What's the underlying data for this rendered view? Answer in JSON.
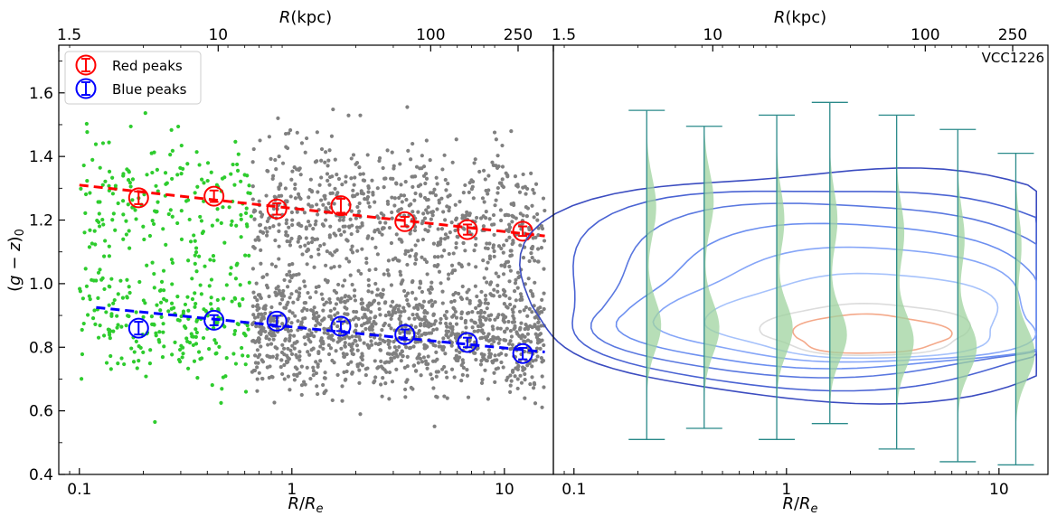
{
  "chart_data": [
    {
      "type": "scatter",
      "panel": "left",
      "xlabel": "R/R_e",
      "ylabel": "(g − z)_0",
      "top_xlabel": "R(kpc)",
      "xscale": "log",
      "xlim": [
        0.08,
        17.0
      ],
      "ylim": [
        0.4,
        1.75
      ],
      "top_ticks": [
        "1.5",
        "10",
        "100",
        "250"
      ],
      "top_ticks_re": [
        0.08,
        0.45,
        4.5,
        11.6
      ],
      "bottom_ticks": [
        "0.1",
        "1",
        "10"
      ],
      "bottom_ticks_re": [
        0.1,
        1,
        10
      ],
      "y_ticks": [
        "0.4",
        "0.6",
        "0.8",
        "1.0",
        "1.2",
        "1.4",
        "1.6"
      ],
      "y_ticks_values": [
        0.4,
        0.6,
        0.8,
        1.0,
        1.2,
        1.4,
        1.6
      ],
      "legend": {
        "position": "top-left",
        "entries": [
          {
            "label": "Red peaks",
            "color": "#ff0000"
          },
          {
            "label": "Blue peaks",
            "color": "#0000ff"
          }
        ]
      },
      "series": [
        {
          "name": "Red peaks",
          "color": "#ff0000",
          "x": [
            0.19,
            0.43,
            0.85,
            1.7,
            3.4,
            6.7,
            12.2
          ],
          "y": [
            1.27,
            1.275,
            1.235,
            1.245,
            1.195,
            1.17,
            1.165
          ],
          "yerr": [
            0.02,
            0.018,
            0.018,
            0.022,
            0.015,
            0.016,
            0.015
          ],
          "fit": {
            "x": [
              0.1,
              15.5
            ],
            "y": [
              1.31,
              1.15
            ]
          }
        },
        {
          "name": "Blue peaks",
          "color": "#0000ff",
          "x": [
            0.19,
            0.43,
            0.85,
            1.7,
            3.4,
            6.7,
            12.2
          ],
          "y": [
            0.86,
            0.885,
            0.882,
            0.866,
            0.84,
            0.815,
            0.78
          ],
          "yerr": [
            0.02,
            0.016,
            0.017,
            0.015,
            0.016,
            0.015,
            0.018
          ],
          "fit": {
            "x": [
              0.12,
              15.5
            ],
            "y": [
              0.925,
              0.785
            ]
          }
        }
      ],
      "scatter_groups": [
        {
          "color": "#2ecc2e",
          "x_range": [
            0.1,
            0.65
          ],
          "y_range": [
            0.5,
            1.55
          ]
        },
        {
          "color": "#808080",
          "x_range": [
            0.65,
            15.5
          ],
          "y_range": [
            0.43,
            1.57
          ]
        }
      ]
    },
    {
      "type": "contour",
      "panel": "right",
      "label": "VCC1226",
      "xlabel": "R/R_e",
      "top_xlabel": "R(kpc)",
      "xscale": "log",
      "xlim": [
        0.08,
        17.0
      ],
      "ylim": [
        0.4,
        1.75
      ],
      "top_ticks": [
        "1.5",
        "10",
        "100",
        "250"
      ],
      "top_ticks_re": [
        0.08,
        0.45,
        4.5,
        11.6
      ],
      "bottom_ticks": [
        "0.1",
        "1",
        "10"
      ],
      "bottom_ticks_re": [
        0.1,
        1,
        10
      ],
      "violins": [
        {
          "x": 0.22,
          "ymin": 0.51,
          "ymax": 1.545,
          "peaks": [
            {
              "y": 0.87,
              "w": 0.38
            },
            {
              "y": 1.24,
              "w": 0.25
            }
          ]
        },
        {
          "x": 0.41,
          "ymin": 0.545,
          "ymax": 1.495,
          "peaks": [
            {
              "y": 0.86,
              "w": 0.4
            },
            {
              "y": 1.26,
              "w": 0.25
            }
          ]
        },
        {
          "x": 0.9,
          "ymin": 0.51,
          "ymax": 1.53,
          "peaks": [
            {
              "y": 0.86,
              "w": 0.42
            },
            {
              "y": 1.2,
              "w": 0.2
            }
          ]
        },
        {
          "x": 1.6,
          "ymin": 0.56,
          "ymax": 1.57,
          "peaks": [
            {
              "y": 0.84,
              "w": 0.45
            },
            {
              "y": 1.2,
              "w": 0.2
            }
          ]
        },
        {
          "x": 3.3,
          "ymin": 0.48,
          "ymax": 1.53,
          "peaks": [
            {
              "y": 0.82,
              "w": 0.45
            },
            {
              "y": 1.16,
              "w": 0.2
            }
          ]
        },
        {
          "x": 6.4,
          "ymin": 0.44,
          "ymax": 1.485,
          "peaks": [
            {
              "y": 0.8,
              "w": 0.5
            },
            {
              "y": 1.14,
              "w": 0.18
            }
          ]
        },
        {
          "x": 12.0,
          "ymin": 0.43,
          "ymax": 1.41,
          "peaks": [
            {
              "y": 0.78,
              "w": 0.5
            },
            {
              "y": 1.12,
              "w": 0.15
            }
          ]
        }
      ],
      "contour_levels": [
        {
          "color": "#3b4cc0",
          "rx": 3.05,
          "ry": 0.36,
          "cx": 0.3,
          "cy": 0.93
        },
        {
          "color": "#4a63d3",
          "rx": 2.75,
          "ry": 0.31,
          "cx": 0.3,
          "cy": 0.925
        },
        {
          "color": "#5a78e0",
          "rx": 2.45,
          "ry": 0.265,
          "cx": 0.35,
          "cy": 0.92
        },
        {
          "color": "#6c8ff0",
          "rx": 2.1,
          "ry": 0.22,
          "cx": 0.4,
          "cy": 0.905
        },
        {
          "color": "#86a6f8",
          "rx": 1.75,
          "ry": 0.175,
          "cx": 0.5,
          "cy": 0.89
        },
        {
          "color": "#a6c2fb",
          "rx": 1.35,
          "ry": 0.13,
          "cx": 0.6,
          "cy": 0.87
        },
        {
          "color": "#dcdcdc",
          "rx": 0.95,
          "ry": 0.08,
          "cx": 0.68,
          "cy": 0.84
        },
        {
          "color": "#f4a98a",
          "rx": 0.72,
          "ry": 0.06,
          "cx": 0.72,
          "cy": 0.83
        }
      ]
    }
  ]
}
